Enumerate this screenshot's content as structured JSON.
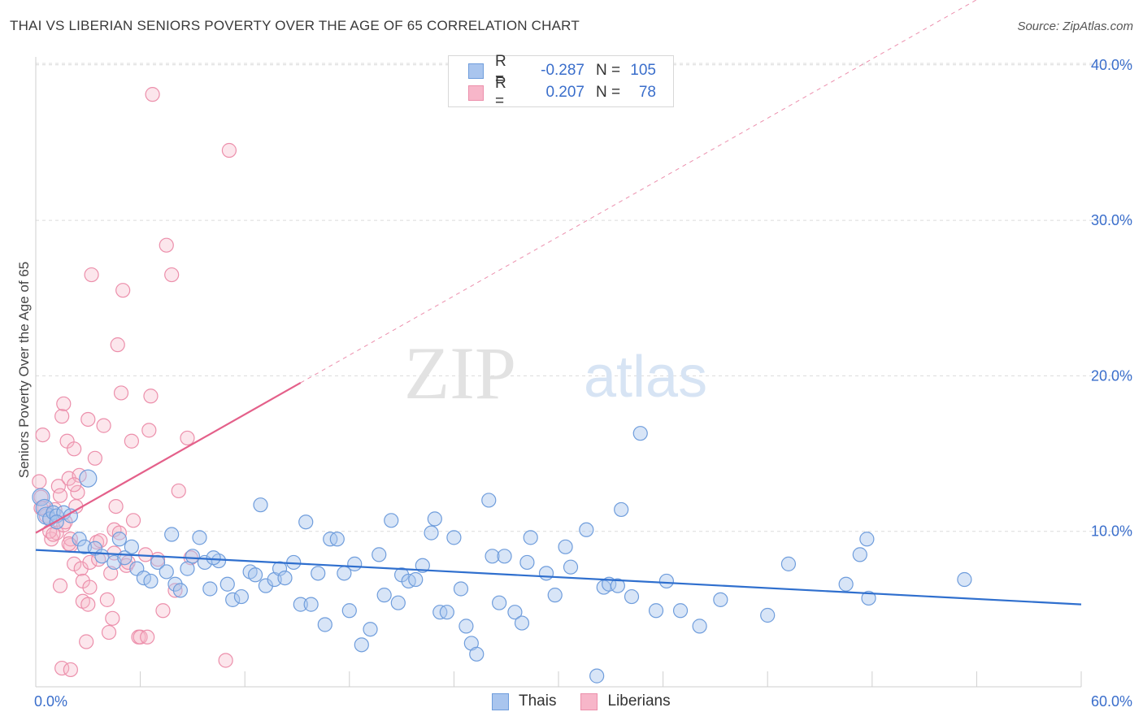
{
  "title": "THAI VS LIBERIAN SENIORS POVERTY OVER THE AGE OF 65 CORRELATION CHART",
  "source": "Source: ZipAtlas.com",
  "watermark": {
    "part1": "ZIP",
    "part2": "atlas"
  },
  "colors": {
    "thai_fill": "#a9c5ee",
    "thai_stroke": "#6f9ddc",
    "thai_line": "#2f6fce",
    "lib_fill": "#f7b6c9",
    "lib_stroke": "#ec8fab",
    "lib_line": "#e4608a",
    "tick_text": "#3a6ecb",
    "grid": "#dcdcdc"
  },
  "legend": {
    "rows": [
      {
        "series": "Thais",
        "r_label": "R =",
        "r_value": "-0.287",
        "n_label": "N =",
        "n_value": "105"
      },
      {
        "series": "Liberians",
        "r_label": "R =",
        "r_value": "0.207",
        "n_label": "N =",
        "n_value": "78"
      }
    ]
  },
  "chart_data": {
    "type": "scatter",
    "title": "THAI VS LIBERIAN SENIORS POVERTY OVER THE AGE OF 65 CORRELATION CHART",
    "xlabel": "",
    "ylabel": "Seniors Poverty Over the Age of 65",
    "xlim": [
      0,
      60
    ],
    "ylim": [
      0,
      40
    ],
    "x_tick_labels": [
      "0.0%",
      "60.0%"
    ],
    "y_ticks": [
      10,
      20,
      30,
      40
    ],
    "y_tick_labels": [
      "10.0%",
      "20.0%",
      "30.0%",
      "40.0%"
    ],
    "grid": "horizontal dashed",
    "legend_position": "top-center",
    "series": [
      {
        "name": "Thais",
        "trend": {
          "x0": 0,
          "y0": 8.8,
          "x1": 60,
          "y1": 5.3
        },
        "points": [
          [
            0.3,
            12.2
          ],
          [
            0.5,
            11.5
          ],
          [
            0.6,
            11.0
          ],
          [
            0.8,
            10.8
          ],
          [
            1.0,
            11.2
          ],
          [
            1.2,
            11.0
          ],
          [
            1.6,
            11.2
          ],
          [
            2.0,
            11.0
          ],
          [
            1.2,
            10.6
          ],
          [
            2.5,
            9.5
          ],
          [
            3.0,
            13.4
          ],
          [
            2.8,
            9.0
          ],
          [
            3.4,
            8.9
          ],
          [
            3.8,
            8.4
          ],
          [
            4.5,
            8.0
          ],
          [
            4.8,
            9.5
          ],
          [
            5.1,
            8.3
          ],
          [
            5.5,
            9.0
          ],
          [
            5.8,
            7.6
          ],
          [
            6.2,
            7.0
          ],
          [
            6.6,
            6.8
          ],
          [
            7.0,
            8.0
          ],
          [
            7.5,
            7.4
          ],
          [
            7.8,
            9.8
          ],
          [
            8.0,
            6.6
          ],
          [
            8.3,
            6.2
          ],
          [
            8.7,
            7.6
          ],
          [
            9.0,
            8.4
          ],
          [
            9.4,
            9.6
          ],
          [
            9.7,
            8.0
          ],
          [
            10.0,
            6.3
          ],
          [
            10.5,
            8.1
          ],
          [
            11.0,
            6.6
          ],
          [
            11.3,
            5.6
          ],
          [
            11.8,
            5.8
          ],
          [
            12.3,
            7.4
          ],
          [
            12.6,
            7.2
          ],
          [
            12.9,
            11.7
          ],
          [
            13.2,
            6.5
          ],
          [
            13.7,
            6.9
          ],
          [
            14.0,
            7.6
          ],
          [
            14.3,
            7.0
          ],
          [
            14.8,
            8.0
          ],
          [
            15.2,
            5.3
          ],
          [
            15.5,
            10.6
          ],
          [
            15.8,
            5.3
          ],
          [
            16.2,
            7.3
          ],
          [
            16.6,
            4.0
          ],
          [
            16.9,
            9.5
          ],
          [
            17.3,
            9.5
          ],
          [
            17.7,
            7.3
          ],
          [
            18.0,
            4.9
          ],
          [
            18.3,
            7.9
          ],
          [
            18.7,
            2.7
          ],
          [
            19.2,
            3.7
          ],
          [
            19.7,
            8.5
          ],
          [
            20.0,
            5.9
          ],
          [
            20.4,
            10.7
          ],
          [
            20.8,
            5.4
          ],
          [
            21.0,
            7.2
          ],
          [
            21.4,
            6.8
          ],
          [
            21.8,
            6.9
          ],
          [
            22.2,
            7.8
          ],
          [
            22.7,
            9.9
          ],
          [
            22.9,
            10.8
          ],
          [
            23.2,
            4.8
          ],
          [
            23.6,
            4.8
          ],
          [
            24.0,
            9.6
          ],
          [
            24.4,
            6.3
          ],
          [
            24.7,
            3.9
          ],
          [
            25.0,
            2.8
          ],
          [
            25.3,
            2.1
          ],
          [
            26.0,
            12.0
          ],
          [
            26.2,
            8.4
          ],
          [
            26.6,
            5.4
          ],
          [
            26.9,
            8.4
          ],
          [
            27.5,
            4.8
          ],
          [
            27.9,
            4.1
          ],
          [
            28.2,
            8.0
          ],
          [
            28.4,
            9.6
          ],
          [
            29.3,
            7.3
          ],
          [
            29.8,
            5.9
          ],
          [
            30.4,
            9.0
          ],
          [
            30.7,
            7.7
          ],
          [
            31.6,
            10.1
          ],
          [
            32.2,
            0.7
          ],
          [
            32.6,
            6.4
          ],
          [
            32.9,
            6.6
          ],
          [
            33.4,
            6.5
          ],
          [
            33.6,
            11.4
          ],
          [
            34.2,
            5.8
          ],
          [
            34.7,
            16.3
          ],
          [
            35.6,
            4.9
          ],
          [
            36.2,
            6.8
          ],
          [
            37.0,
            4.9
          ],
          [
            38.1,
            3.9
          ],
          [
            39.3,
            5.6
          ],
          [
            42.0,
            4.6
          ],
          [
            43.2,
            7.9
          ],
          [
            46.5,
            6.6
          ],
          [
            47.3,
            8.5
          ],
          [
            47.7,
            9.5
          ],
          [
            47.8,
            5.7
          ],
          [
            53.3,
            6.9
          ],
          [
            10.2,
            8.3
          ]
        ]
      },
      {
        "name": "Liberians",
        "trend": {
          "x0": 0,
          "y0": 9.9,
          "x1": 60,
          "y1": 48.0,
          "solid_until_x": 15.2
        },
        "points": [
          [
            0.2,
            13.2
          ],
          [
            0.3,
            12.2
          ],
          [
            0.4,
            16.2
          ],
          [
            0.5,
            11.5
          ],
          [
            0.6,
            11.0
          ],
          [
            0.8,
            10.8
          ],
          [
            0.9,
            9.5
          ],
          [
            1.1,
            11.4
          ],
          [
            1.2,
            9.9
          ],
          [
            1.3,
            12.9
          ],
          [
            1.4,
            6.5
          ],
          [
            1.5,
            17.4
          ],
          [
            1.6,
            10.4
          ],
          [
            1.6,
            18.2
          ],
          [
            1.8,
            15.8
          ],
          [
            1.9,
            13.4
          ],
          [
            2.0,
            9.1
          ],
          [
            2.0,
            9.5
          ],
          [
            2.2,
            15.3
          ],
          [
            2.2,
            7.9
          ],
          [
            2.4,
            12.5
          ],
          [
            2.5,
            13.6
          ],
          [
            2.6,
            7.6
          ],
          [
            2.7,
            6.8
          ],
          [
            2.7,
            5.5
          ],
          [
            2.9,
            2.9
          ],
          [
            3.0,
            17.2
          ],
          [
            3.1,
            8.0
          ],
          [
            3.1,
            6.4
          ],
          [
            3.2,
            26.5
          ],
          [
            3.4,
            14.7
          ],
          [
            3.5,
            9.3
          ],
          [
            3.7,
            9.4
          ],
          [
            3.9,
            16.8
          ],
          [
            4.1,
            5.6
          ],
          [
            4.2,
            3.5
          ],
          [
            4.3,
            7.3
          ],
          [
            4.4,
            4.4
          ],
          [
            4.5,
            10.1
          ],
          [
            4.6,
            11.6
          ],
          [
            4.7,
            22.0
          ],
          [
            4.8,
            9.9
          ],
          [
            4.9,
            18.9
          ],
          [
            5.0,
            25.5
          ],
          [
            5.2,
            7.8
          ],
          [
            5.3,
            8.0
          ],
          [
            5.5,
            15.8
          ],
          [
            5.6,
            10.7
          ],
          [
            5.9,
            3.2
          ],
          [
            6.0,
            3.2
          ],
          [
            6.3,
            8.5
          ],
          [
            6.5,
            16.5
          ],
          [
            6.6,
            18.7
          ],
          [
            6.7,
            38.1
          ],
          [
            7.0,
            8.2
          ],
          [
            7.3,
            4.9
          ],
          [
            7.5,
            28.4
          ],
          [
            7.8,
            26.5
          ],
          [
            8.0,
            6.2
          ],
          [
            8.2,
            12.6
          ],
          [
            8.7,
            16.0
          ],
          [
            8.9,
            8.3
          ],
          [
            11.1,
            34.5
          ],
          [
            10.9,
            1.7
          ],
          [
            1.5,
            1.2
          ],
          [
            2.0,
            1.1
          ],
          [
            0.8,
            10.0
          ],
          [
            1.0,
            9.8
          ],
          [
            1.7,
            10.6
          ],
          [
            1.4,
            12.3
          ],
          [
            2.3,
            11.6
          ],
          [
            0.3,
            11.5
          ],
          [
            3.6,
            8.2
          ],
          [
            2.2,
            13.0
          ],
          [
            6.4,
            3.2
          ],
          [
            3.0,
            5.3
          ],
          [
            4.5,
            8.6
          ],
          [
            1.9,
            9.2
          ]
        ]
      }
    ]
  }
}
